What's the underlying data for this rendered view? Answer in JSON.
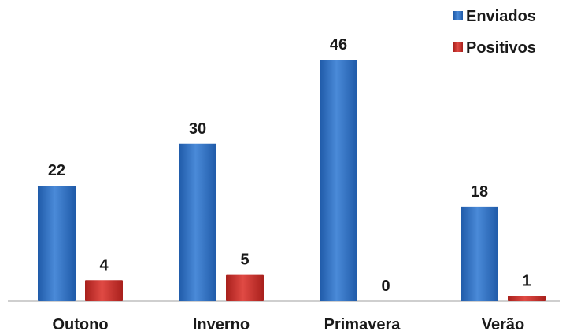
{
  "chart_data": {
    "type": "bar",
    "categories": [
      "Outono",
      "Inverno",
      "Primavera",
      "Verão"
    ],
    "series": [
      {
        "name": "Enviados",
        "values": [
          22,
          30,
          46,
          18
        ]
      },
      {
        "name": "Positivos",
        "values": [
          4,
          5,
          0,
          1
        ]
      }
    ],
    "title": "",
    "xlabel": "",
    "ylabel": "",
    "ylim": [
      0,
      46
    ],
    "grid": false,
    "legend_position": "top-right",
    "colors": {
      "Enviados": "#2f6fc1",
      "Positivos": "#c9302c"
    }
  }
}
